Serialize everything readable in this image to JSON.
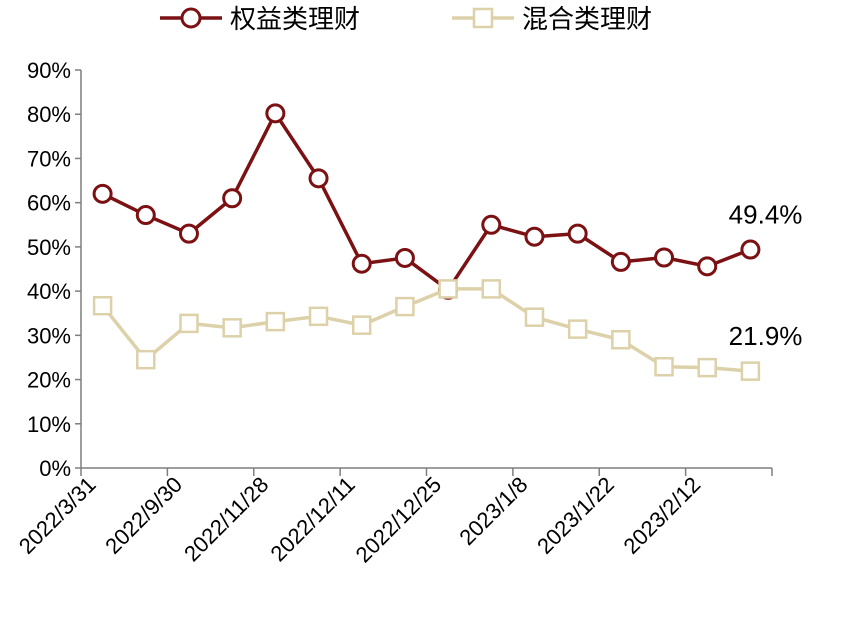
{
  "chart_data": {
    "type": "line",
    "title": "",
    "xlabel": "",
    "ylabel": "",
    "ylim": [
      0,
      90
    ],
    "y_tick_labels": [
      "0%",
      "10%",
      "20%",
      "30%",
      "40%",
      "50%",
      "60%",
      "70%",
      "80%",
      "90%"
    ],
    "x_tick_labels": [
      "2022/3/31",
      "2022/9/30",
      "2022/11/28",
      "2022/12/11",
      "2022/12/25",
      "2023/1/8",
      "2023/1/22",
      "2023/2/12"
    ],
    "legend_position": "top",
    "grid": false,
    "series": [
      {
        "name": "权益类理财",
        "color": "#7b1113",
        "marker": "circle",
        "values": [
          62.0,
          57.2,
          53.0,
          61.0,
          80.2,
          65.5,
          46.2,
          47.5,
          40.3,
          55.0,
          52.3,
          53.0,
          46.6,
          47.6,
          45.6,
          49.4
        ]
      },
      {
        "name": "混合类理财",
        "color": "#ddd1a9",
        "marker": "square",
        "values": [
          36.7,
          24.5,
          32.7,
          31.7,
          33.1,
          34.3,
          32.3,
          36.5,
          40.5,
          40.5,
          34.1,
          31.4,
          29.0,
          22.9,
          22.7,
          21.9
        ]
      }
    ],
    "annotations": [
      {
        "text": "49.4%",
        "series": 0
      },
      {
        "text": "21.9%",
        "series": 1
      }
    ]
  }
}
